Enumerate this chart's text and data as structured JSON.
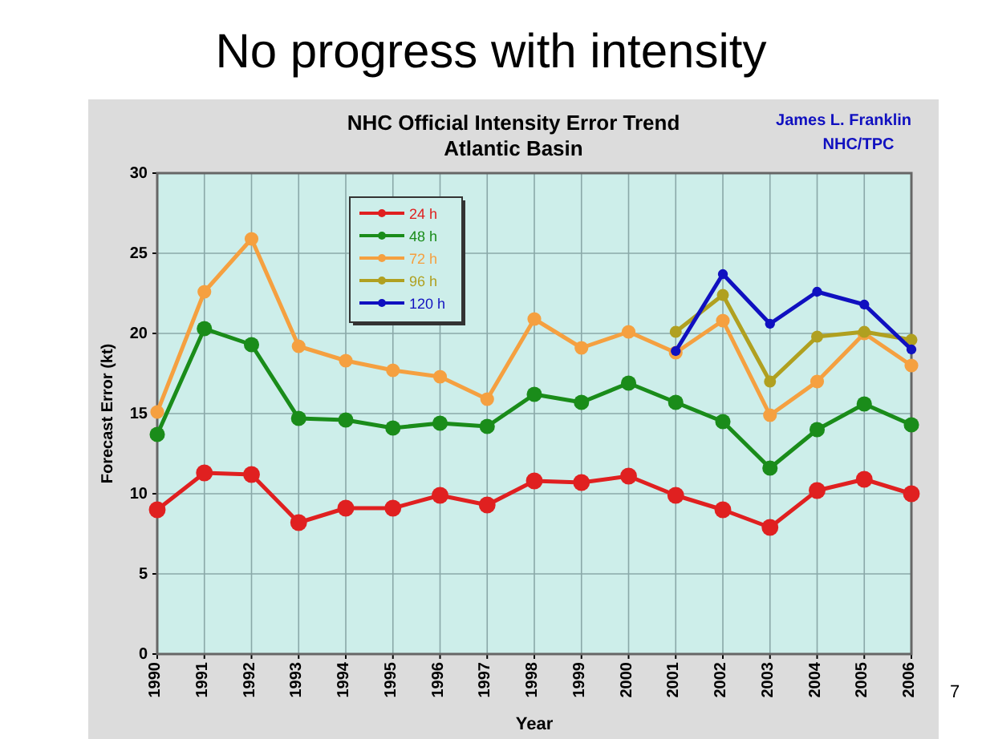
{
  "chart_data": {
    "type": "line",
    "title": "No progress with intensity",
    "subtitle": "NHC Official Intensity Error Trend\nAtlantic Basin",
    "xlabel": "Year",
    "ylabel": "Forecast Error (kt)",
    "annotations": [
      "James L. Franklin",
      "NHC/TPC",
      "7"
    ],
    "x": [
      1990,
      1991,
      1992,
      1993,
      1994,
      1995,
      1996,
      1997,
      1998,
      1999,
      2000,
      2001,
      2002,
      2003,
      2004,
      2005,
      2006
    ],
    "xlim": [
      1990,
      2006
    ],
    "xticks": [
      1990,
      1991,
      1992,
      1993,
      1994,
      1995,
      1996,
      1997,
      1998,
      1999,
      2000,
      2001,
      2002,
      2003,
      2004,
      2005,
      2006
    ],
    "ylim": [
      0,
      30
    ],
    "yticks": [
      0,
      5,
      10,
      15,
      20,
      25,
      30
    ],
    "grid": true,
    "legend": "top left",
    "marker": "circle",
    "line_style": "solid",
    "series": [
      {
        "name": "24 h",
        "color": "#e02020",
        "values": [
          9.0,
          11.3,
          11.2,
          8.2,
          9.1,
          9.1,
          9.9,
          9.3,
          10.8,
          10.7,
          11.1,
          9.9,
          9.0,
          7.9,
          10.2,
          10.9,
          10.0
        ]
      },
      {
        "name": "48 h",
        "color": "#1a8c1a",
        "values": [
          13.7,
          20.3,
          19.3,
          14.7,
          14.6,
          14.1,
          14.4,
          14.2,
          16.2,
          15.7,
          16.9,
          15.7,
          14.5,
          11.6,
          14.0,
          15.6,
          14.3
        ]
      },
      {
        "name": "72 h",
        "color": "#f5a040",
        "values": [
          15.1,
          22.6,
          25.9,
          19.2,
          18.3,
          17.7,
          17.3,
          15.9,
          20.9,
          19.1,
          20.1,
          18.8,
          20.8,
          14.9,
          17.0,
          20.0,
          18.0
        ]
      },
      {
        "name": "96 h",
        "color": "#b0a020",
        "values": [
          null,
          null,
          null,
          null,
          null,
          null,
          null,
          null,
          null,
          null,
          null,
          20.1,
          22.4,
          17.0,
          19.8,
          20.1,
          19.6
        ]
      },
      {
        "name": "120 h",
        "color": "#1010c0",
        "values": [
          null,
          null,
          null,
          null,
          null,
          null,
          null,
          null,
          null,
          null,
          null,
          18.9,
          23.7,
          20.6,
          22.6,
          21.8,
          19.0
        ]
      }
    ]
  }
}
